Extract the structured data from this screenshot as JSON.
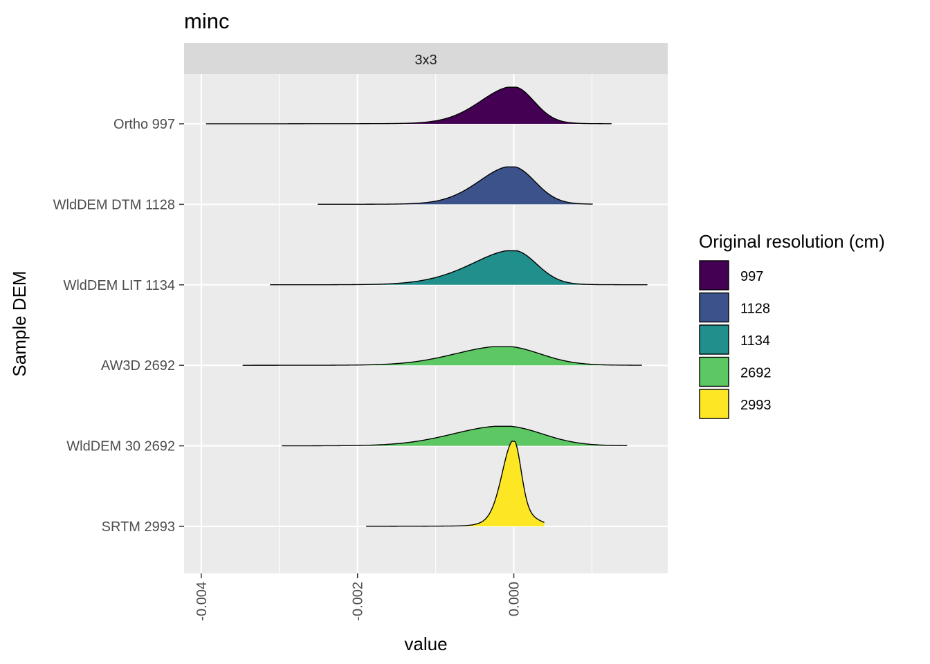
{
  "chart_data": {
    "type": "ridgeline",
    "title": "minc",
    "facet": "3x3",
    "xlabel": "value",
    "ylabel": "Sample DEM",
    "xlim": [
      -0.00422,
      0.00197
    ],
    "x_ticks": [
      -0.004,
      -0.002,
      0.0
    ],
    "x_tick_labels": [
      "-0.004",
      "-0.002",
      "0.000"
    ],
    "x_minor_ticks": [
      -0.003,
      -0.001,
      0.001
    ],
    "grid": true,
    "legend": {
      "title": "Original resolution (cm)",
      "placement": "right",
      "entries": [
        {
          "label": "997",
          "color": "#440154"
        },
        {
          "label": "1128",
          "color": "#3B528B"
        },
        {
          "label": "1134",
          "color": "#21908C"
        },
        {
          "label": "2692",
          "color": "#5DC863"
        },
        {
          "label": "2993",
          "color": "#FDE725"
        }
      ]
    },
    "series": [
      {
        "name": "Ortho 997",
        "color": "#440154",
        "x_range": [
          -0.00394,
          0.00125
        ],
        "peak": 0.0,
        "width_left": 0.00045,
        "width_right": 0.00025,
        "height": 0.43,
        "shoulder_height": 0.16,
        "shoulder_width": 0.00032,
        "tail_left": 0.02,
        "tail_right": 0.01
      },
      {
        "name": "WldDEM DTM 1128",
        "color": "#3B528B",
        "x_range": [
          -0.00251,
          0.00101
        ],
        "peak": -2e-05,
        "width_left": 0.00045,
        "width_right": 0.00028,
        "height": 0.44,
        "shoulder_height": 0.18,
        "shoulder_width": 0.00033,
        "tail_left": 0.02,
        "tail_right": 0.01
      },
      {
        "name": "WldDEM LIT 1134",
        "color": "#21908C",
        "x_range": [
          -0.00312,
          0.00171
        ],
        "peak": 0.0,
        "width_left": 0.0006,
        "width_right": 0.00028,
        "height": 0.4,
        "shoulder_height": 0.18,
        "shoulder_width": 0.00035,
        "tail_left": 0.02,
        "tail_right": 0.01
      },
      {
        "name": "AW3D 2692",
        "color": "#5DC863",
        "x_range": [
          -0.00347,
          0.00164
        ],
        "peak": -0.00012,
        "width_left": 0.00062,
        "width_right": 0.00045,
        "height": 0.22,
        "shoulder_height": 0.0,
        "shoulder_width": 0.0003,
        "tail_left": 0.03,
        "tail_right": 0.02
      },
      {
        "name": "WldDEM 30 2692",
        "color": "#5DC863",
        "x_range": [
          -0.00297,
          0.00145
        ],
        "peak": -0.00012,
        "width_left": 0.00065,
        "width_right": 0.00048,
        "height": 0.23,
        "shoulder_height": 0.0,
        "shoulder_width": 0.0003,
        "tail_left": 0.02,
        "tail_right": 0.015
      },
      {
        "name": "SRTM 2993",
        "color": "#FDE725",
        "x_range": [
          -0.00189,
          0.00039
        ],
        "peak": 0.0,
        "width_left": 0.00014,
        "width_right": 9e-05,
        "height": 1.0,
        "shoulder_height": 0.2,
        "shoulder_width": 0.00022,
        "tail_left": 0.015,
        "tail_right": 0.01
      }
    ]
  }
}
